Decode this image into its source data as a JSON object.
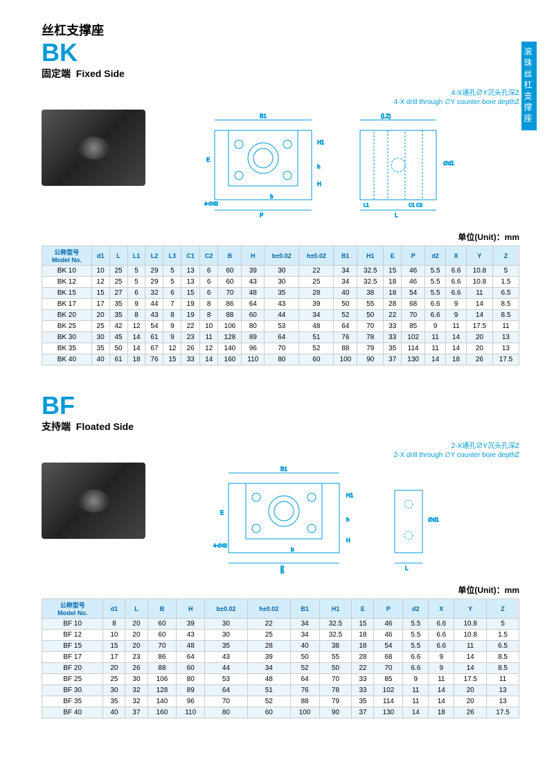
{
  "side_tab": "滚珠丝杠支撑座",
  "bk": {
    "title_cn": "丝杠支撑座",
    "code": "BK",
    "subtitle_cn": "固定端",
    "subtitle_en": "Fixed Side",
    "note_cn": "4-X通孔∅Y沉头孔深Z",
    "note_en": "4-X drill through ∅Y counter bore depthZ",
    "unit": "单位(Unit)：mm",
    "headers": [
      "公称型号\nModel No.",
      "d1",
      "L",
      "L1",
      "L2",
      "L3",
      "C1",
      "C2",
      "B",
      "H",
      "b±0.02",
      "h±0.02",
      "B1",
      "H1",
      "E",
      "P",
      "d2",
      "X",
      "Y",
      "Z"
    ],
    "rows": [
      [
        "BK 10",
        "10",
        "25",
        "5",
        "29",
        "5",
        "13",
        "6",
        "60",
        "39",
        "30",
        "22",
        "34",
        "32.5",
        "15",
        "46",
        "5.5",
        "6.6",
        "10.8",
        "5"
      ],
      [
        "BK 12",
        "12",
        "25",
        "5",
        "29",
        "5",
        "13",
        "6",
        "60",
        "43",
        "30",
        "25",
        "34",
        "32.5",
        "18",
        "46",
        "5.5",
        "6.6",
        "10.8",
        "1.5"
      ],
      [
        "BK 15",
        "15",
        "27",
        "6",
        "32",
        "6",
        "15",
        "6",
        "70",
        "48",
        "35",
        "28",
        "40",
        "38",
        "18",
        "54",
        "5.5",
        "6.6",
        "11",
        "6.5"
      ],
      [
        "BK 17",
        "17",
        "35",
        "9",
        "44",
        "7",
        "19",
        "8",
        "86",
        "64",
        "43",
        "39",
        "50",
        "55",
        "28",
        "68",
        "6.6",
        "9",
        "14",
        "8.5"
      ],
      [
        "BK 20",
        "20",
        "35",
        "8",
        "43",
        "8",
        "19",
        "8",
        "88",
        "60",
        "44",
        "34",
        "52",
        "50",
        "22",
        "70",
        "6.6",
        "9",
        "14",
        "8.5"
      ],
      [
        "BK 25",
        "25",
        "42",
        "12",
        "54",
        "9",
        "22",
        "10",
        "106",
        "80",
        "53",
        "48",
        "64",
        "70",
        "33",
        "85",
        "9",
        "11",
        "17.5",
        "11"
      ],
      [
        "BK 30",
        "30",
        "45",
        "14",
        "61",
        "9",
        "23",
        "11",
        "128",
        "89",
        "64",
        "51",
        "76",
        "78",
        "33",
        "102",
        "11",
        "14",
        "20",
        "13"
      ],
      [
        "BK 35",
        "35",
        "50",
        "14",
        "67",
        "12",
        "26",
        "12",
        "140",
        "96",
        "70",
        "52",
        "88",
        "79",
        "35",
        "114",
        "11",
        "14",
        "20",
        "13"
      ],
      [
        "BK 40",
        "40",
        "61",
        "18",
        "76",
        "15",
        "33",
        "14",
        "160",
        "110",
        "80",
        "60",
        "100",
        "90",
        "37",
        "130",
        "14",
        "18",
        "26",
        "17.5"
      ]
    ]
  },
  "bf": {
    "code": "BF",
    "subtitle_cn": "支持端",
    "subtitle_en": "Floated Side",
    "note_cn": "2-X通孔∅Y沉头孔深Z",
    "note_en": "2-X drill through ∅Y counter bore depthZ",
    "unit": "单位(Unit)：mm",
    "headers": [
      "公称型号\nModel No.",
      "d1",
      "L",
      "B",
      "H",
      "b±0.02",
      "h±0.02",
      "B1",
      "H1",
      "E",
      "P",
      "d2",
      "X",
      "Y",
      "Z"
    ],
    "rows": [
      [
        "BF 10",
        "8",
        "20",
        "60",
        "39",
        "30",
        "22",
        "34",
        "32.5",
        "15",
        "46",
        "5.5",
        "6.6",
        "10.8",
        "5"
      ],
      [
        "BF 12",
        "10",
        "20",
        "60",
        "43",
        "30",
        "25",
        "34",
        "32.5",
        "18",
        "46",
        "5.5",
        "6.6",
        "10.8",
        "1.5"
      ],
      [
        "BF 15",
        "15",
        "20",
        "70",
        "48",
        "35",
        "28",
        "40",
        "38",
        "18",
        "54",
        "5.5",
        "6.6",
        "11",
        "6.5"
      ],
      [
        "BF 17",
        "17",
        "23",
        "86",
        "64",
        "43",
        "39",
        "50",
        "55",
        "28",
        "68",
        "6.6",
        "9",
        "14",
        "8.5"
      ],
      [
        "BF 20",
        "20",
        "26",
        "88",
        "60",
        "44",
        "34",
        "52",
        "50",
        "22",
        "70",
        "6.6",
        "9",
        "14",
        "8.5"
      ],
      [
        "BF 25",
        "25",
        "30",
        "106",
        "80",
        "53",
        "48",
        "64",
        "70",
        "33",
        "85",
        "9",
        "11",
        "17.5",
        "11"
      ],
      [
        "BF 30",
        "30",
        "32",
        "128",
        "89",
        "64",
        "51",
        "76",
        "78",
        "33",
        "102",
        "11",
        "14",
        "20",
        "13"
      ],
      [
        "BF 35",
        "35",
        "32",
        "140",
        "96",
        "70",
        "52",
        "88",
        "79",
        "35",
        "114",
        "11",
        "14",
        "20",
        "13"
      ],
      [
        "BF 40",
        "40",
        "37",
        "160",
        "110",
        "80",
        "60",
        "100",
        "90",
        "37",
        "130",
        "14",
        "18",
        "26",
        "17.5"
      ]
    ]
  },
  "colors": {
    "accent": "#0099d8",
    "header_bg": "#d4edfc",
    "stripe": "#eaf5fc",
    "border": "#cccccc"
  }
}
